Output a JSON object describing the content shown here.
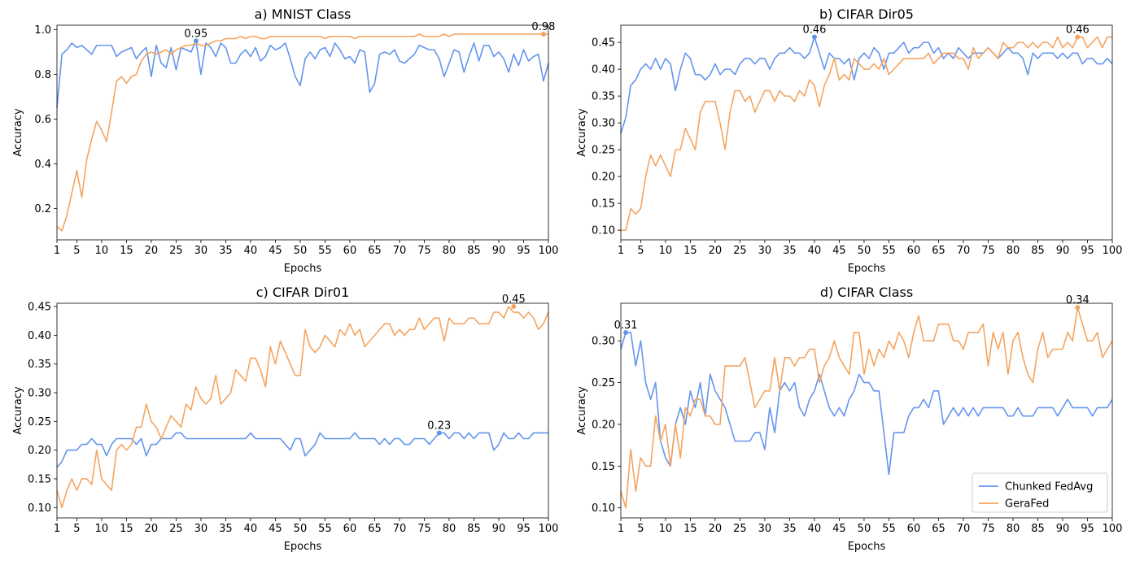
{
  "colors": {
    "chunked": "#6495ED",
    "gerafed": "#F4A460"
  },
  "legend": [
    {
      "label": "Chunked FedAvg",
      "color": "#6495ED"
    },
    {
      "label": "GeraFed",
      "color": "#F4A460"
    }
  ],
  "chart_data": [
    {
      "type": "line",
      "title": "a) MNIST Class",
      "xlabel": "Epochs",
      "ylabel": "Accuracy",
      "xlim": [
        1,
        100
      ],
      "ylim": [
        0.06,
        1.02
      ],
      "xticks": [
        1,
        5,
        10,
        15,
        20,
        25,
        30,
        35,
        40,
        45,
        50,
        55,
        60,
        65,
        70,
        75,
        80,
        85,
        90,
        95,
        100
      ],
      "yticks": [
        0.2,
        0.4,
        0.6,
        0.8,
        1.0
      ],
      "ytick_labels": [
        "0.2",
        "0.4",
        "0.6",
        "0.8",
        "1.0"
      ],
      "series": [
        {
          "name": "Chunked FedAvg",
          "values": [
            0.65,
            0.89,
            0.91,
            0.94,
            0.92,
            0.93,
            0.91,
            0.89,
            0.93,
            0.93,
            0.93,
            0.93,
            0.88,
            0.9,
            0.91,
            0.92,
            0.87,
            0.9,
            0.92,
            0.79,
            0.93,
            0.85,
            0.83,
            0.92,
            0.82,
            0.92,
            0.91,
            0.9,
            0.95,
            0.8,
            0.94,
            0.92,
            0.88,
            0.94,
            0.92,
            0.85,
            0.85,
            0.89,
            0.91,
            0.88,
            0.92,
            0.86,
            0.88,
            0.93,
            0.91,
            0.92,
            0.94,
            0.87,
            0.79,
            0.75,
            0.87,
            0.9,
            0.87,
            0.91,
            0.92,
            0.88,
            0.94,
            0.91,
            0.87,
            0.88,
            0.85,
            0.91,
            0.9,
            0.72,
            0.76,
            0.89,
            0.9,
            0.89,
            0.91,
            0.86,
            0.85,
            0.87,
            0.89,
            0.93,
            0.92,
            0.91,
            0.91,
            0.87,
            0.79,
            0.85,
            0.91,
            0.9,
            0.81,
            0.88,
            0.94,
            0.86,
            0.93,
            0.93,
            0.88,
            0.9,
            0.87,
            0.81,
            0.89,
            0.84,
            0.91,
            0.86,
            0.88,
            0.89,
            0.77,
            0.85
          ]
        },
        {
          "name": "GeraFed",
          "values": [
            0.12,
            0.1,
            0.17,
            0.27,
            0.37,
            0.25,
            0.42,
            0.51,
            0.59,
            0.55,
            0.5,
            0.63,
            0.77,
            0.79,
            0.76,
            0.79,
            0.8,
            0.86,
            0.89,
            0.9,
            0.89,
            0.9,
            0.91,
            0.89,
            0.91,
            0.92,
            0.93,
            0.93,
            0.94,
            0.93,
            0.93,
            0.94,
            0.95,
            0.95,
            0.96,
            0.96,
            0.96,
            0.97,
            0.96,
            0.97,
            0.97,
            0.96,
            0.96,
            0.97,
            0.97,
            0.97,
            0.97,
            0.97,
            0.97,
            0.97,
            0.97,
            0.97,
            0.97,
            0.97,
            0.96,
            0.97,
            0.97,
            0.97,
            0.97,
            0.97,
            0.96,
            0.97,
            0.97,
            0.97,
            0.97,
            0.97,
            0.97,
            0.97,
            0.97,
            0.97,
            0.97,
            0.97,
            0.97,
            0.98,
            0.97,
            0.97,
            0.97,
            0.97,
            0.98,
            0.97,
            0.98,
            0.98,
            0.98,
            0.98,
            0.98,
            0.98,
            0.98,
            0.98,
            0.98,
            0.98,
            0.98,
            0.98,
            0.98,
            0.98,
            0.98,
            0.98,
            0.98,
            0.98,
            0.98,
            0.98
          ]
        }
      ],
      "annotations": [
        {
          "series": 0,
          "x": 29,
          "y": 0.95,
          "label": "0.95"
        },
        {
          "series": 1,
          "x": 99,
          "y": 0.98,
          "label": "0.98"
        }
      ],
      "legend": false
    },
    {
      "type": "line",
      "title": "b) CIFAR Dir05",
      "xlabel": "Epochs",
      "ylabel": "Accuracy",
      "xlim": [
        1,
        100
      ],
      "ylim": [
        0.082,
        0.482
      ],
      "xticks": [
        1,
        5,
        10,
        15,
        20,
        25,
        30,
        35,
        40,
        45,
        50,
        55,
        60,
        65,
        70,
        75,
        80,
        85,
        90,
        95,
        100
      ],
      "yticks": [
        0.1,
        0.15,
        0.2,
        0.25,
        0.3,
        0.35,
        0.4,
        0.45
      ],
      "ytick_labels": [
        "0.10",
        "0.15",
        "0.20",
        "0.25",
        "0.30",
        "0.35",
        "0.40",
        "0.45"
      ],
      "series": [
        {
          "name": "Chunked FedAvg",
          "values": [
            0.28,
            0.31,
            0.37,
            0.38,
            0.4,
            0.41,
            0.4,
            0.42,
            0.4,
            0.42,
            0.41,
            0.36,
            0.4,
            0.43,
            0.42,
            0.39,
            0.39,
            0.38,
            0.39,
            0.41,
            0.39,
            0.4,
            0.4,
            0.39,
            0.41,
            0.42,
            0.42,
            0.41,
            0.42,
            0.42,
            0.4,
            0.42,
            0.43,
            0.43,
            0.44,
            0.43,
            0.43,
            0.42,
            0.43,
            0.46,
            0.43,
            0.4,
            0.43,
            0.42,
            0.42,
            0.41,
            0.42,
            0.38,
            0.42,
            0.43,
            0.42,
            0.44,
            0.43,
            0.4,
            0.43,
            0.43,
            0.44,
            0.45,
            0.43,
            0.44,
            0.44,
            0.45,
            0.45,
            0.43,
            0.44,
            0.42,
            0.43,
            0.42,
            0.44,
            0.43,
            0.42,
            0.43,
            0.43,
            0.43,
            0.44,
            0.43,
            0.42,
            0.43,
            0.44,
            0.43,
            0.43,
            0.42,
            0.39,
            0.43,
            0.42,
            0.43,
            0.43,
            0.43,
            0.42,
            0.43,
            0.42,
            0.43,
            0.43,
            0.41,
            0.42,
            0.42,
            0.41,
            0.41,
            0.42,
            0.41
          ]
        },
        {
          "name": "GeraFed",
          "values": [
            0.1,
            0.1,
            0.14,
            0.13,
            0.14,
            0.2,
            0.24,
            0.22,
            0.24,
            0.22,
            0.2,
            0.25,
            0.25,
            0.29,
            0.27,
            0.25,
            0.32,
            0.34,
            0.34,
            0.34,
            0.3,
            0.25,
            0.32,
            0.36,
            0.36,
            0.34,
            0.35,
            0.32,
            0.34,
            0.36,
            0.36,
            0.34,
            0.36,
            0.35,
            0.35,
            0.34,
            0.36,
            0.35,
            0.38,
            0.37,
            0.33,
            0.37,
            0.39,
            0.42,
            0.38,
            0.39,
            0.38,
            0.42,
            0.41,
            0.4,
            0.4,
            0.41,
            0.4,
            0.42,
            0.39,
            0.4,
            0.41,
            0.42,
            0.42,
            0.42,
            0.42,
            0.42,
            0.43,
            0.41,
            0.42,
            0.43,
            0.43,
            0.43,
            0.42,
            0.42,
            0.4,
            0.44,
            0.42,
            0.43,
            0.44,
            0.43,
            0.42,
            0.45,
            0.44,
            0.44,
            0.45,
            0.45,
            0.44,
            0.45,
            0.44,
            0.45,
            0.45,
            0.44,
            0.46,
            0.44,
            0.45,
            0.44,
            0.46,
            0.46,
            0.44,
            0.45,
            0.46,
            0.44,
            0.46,
            0.46
          ]
        }
      ],
      "annotations": [
        {
          "series": 0,
          "x": 40,
          "y": 0.46,
          "label": "0.46"
        },
        {
          "series": 1,
          "x": 93,
          "y": 0.46,
          "label": "0.46"
        }
      ],
      "legend": false
    },
    {
      "type": "line",
      "title": "c) CIFAR Dir01",
      "xlabel": "Epochs",
      "ylabel": "Accuracy",
      "xlim": [
        1,
        100
      ],
      "ylim": [
        0.082,
        0.4557
      ],
      "xticks": [
        1,
        5,
        10,
        15,
        20,
        25,
        30,
        35,
        40,
        45,
        50,
        55,
        60,
        65,
        70,
        75,
        80,
        85,
        90,
        95,
        100
      ],
      "yticks": [
        0.1,
        0.15,
        0.2,
        0.25,
        0.3,
        0.35,
        0.4,
        0.45
      ],
      "ytick_labels": [
        "0.10",
        "0.15",
        "0.20",
        "0.25",
        "0.30",
        "0.35",
        "0.40",
        "0.45"
      ],
      "series": [
        {
          "name": "Chunked FedAvg",
          "values": [
            0.17,
            0.18,
            0.2,
            0.2,
            0.2,
            0.21,
            0.21,
            0.22,
            0.21,
            0.21,
            0.19,
            0.21,
            0.22,
            0.22,
            0.22,
            0.22,
            0.21,
            0.22,
            0.19,
            0.21,
            0.21,
            0.22,
            0.22,
            0.22,
            0.23,
            0.23,
            0.22,
            0.22,
            0.22,
            0.22,
            0.22,
            0.22,
            0.22,
            0.22,
            0.22,
            0.22,
            0.22,
            0.22,
            0.22,
            0.23,
            0.22,
            0.22,
            0.22,
            0.22,
            0.22,
            0.22,
            0.21,
            0.2,
            0.22,
            0.22,
            0.19,
            0.2,
            0.21,
            0.23,
            0.22,
            0.22,
            0.22,
            0.22,
            0.22,
            0.22,
            0.23,
            0.22,
            0.22,
            0.22,
            0.22,
            0.21,
            0.22,
            0.21,
            0.22,
            0.22,
            0.21,
            0.21,
            0.22,
            0.22,
            0.22,
            0.21,
            0.22,
            0.23,
            0.23,
            0.22,
            0.23,
            0.23,
            0.22,
            0.23,
            0.22,
            0.23,
            0.23,
            0.23,
            0.2,
            0.21,
            0.23,
            0.22,
            0.22,
            0.23,
            0.22,
            0.22,
            0.23,
            0.23,
            0.23,
            0.23
          ]
        },
        {
          "name": "GeraFed",
          "values": [
            0.13,
            0.1,
            0.13,
            0.15,
            0.13,
            0.15,
            0.15,
            0.14,
            0.2,
            0.15,
            0.14,
            0.13,
            0.2,
            0.21,
            0.2,
            0.21,
            0.24,
            0.24,
            0.28,
            0.25,
            0.24,
            0.22,
            0.24,
            0.26,
            0.25,
            0.24,
            0.28,
            0.27,
            0.31,
            0.29,
            0.28,
            0.29,
            0.33,
            0.28,
            0.29,
            0.3,
            0.34,
            0.33,
            0.32,
            0.36,
            0.36,
            0.34,
            0.31,
            0.38,
            0.35,
            0.39,
            0.37,
            0.35,
            0.33,
            0.33,
            0.41,
            0.38,
            0.37,
            0.38,
            0.4,
            0.39,
            0.38,
            0.41,
            0.4,
            0.42,
            0.4,
            0.41,
            0.38,
            0.39,
            0.4,
            0.41,
            0.42,
            0.42,
            0.4,
            0.41,
            0.4,
            0.41,
            0.41,
            0.43,
            0.41,
            0.42,
            0.43,
            0.43,
            0.39,
            0.43,
            0.42,
            0.42,
            0.42,
            0.43,
            0.43,
            0.42,
            0.42,
            0.42,
            0.44,
            0.44,
            0.43,
            0.45,
            0.44,
            0.44,
            0.43,
            0.44,
            0.43,
            0.41,
            0.42,
            0.44
          ]
        }
      ],
      "annotations": [
        {
          "series": 0,
          "x": 78,
          "y": 0.23,
          "label": "0.23"
        },
        {
          "series": 1,
          "x": 93,
          "y": 0.45,
          "label": "0.45"
        }
      ],
      "legend": false
    },
    {
      "type": "line",
      "title": "d) CIFAR Class",
      "xlabel": "Epochs",
      "ylabel": "Accuracy",
      "xlim": [
        1,
        100
      ],
      "ylim": [
        0.088,
        0.345
      ],
      "xticks": [
        1,
        5,
        10,
        15,
        20,
        25,
        30,
        35,
        40,
        45,
        50,
        55,
        60,
        65,
        70,
        75,
        80,
        85,
        90,
        95,
        100
      ],
      "yticks": [
        0.1,
        0.15,
        0.2,
        0.25,
        0.3
      ],
      "ytick_labels": [
        "0.10",
        "0.15",
        "0.20",
        "0.25",
        "0.30"
      ],
      "series": [
        {
          "name": "Chunked FedAvg",
          "values": [
            0.29,
            0.31,
            0.31,
            0.27,
            0.3,
            0.25,
            0.23,
            0.25,
            0.18,
            0.16,
            0.15,
            0.2,
            0.22,
            0.2,
            0.24,
            0.22,
            0.25,
            0.21,
            0.26,
            0.24,
            0.23,
            0.22,
            0.2,
            0.18,
            0.18,
            0.18,
            0.18,
            0.19,
            0.19,
            0.17,
            0.22,
            0.19,
            0.24,
            0.25,
            0.24,
            0.25,
            0.22,
            0.21,
            0.23,
            0.24,
            0.26,
            0.24,
            0.22,
            0.21,
            0.22,
            0.21,
            0.23,
            0.24,
            0.26,
            0.25,
            0.25,
            0.24,
            0.24,
            0.19,
            0.14,
            0.19,
            0.19,
            0.19,
            0.21,
            0.22,
            0.22,
            0.23,
            0.22,
            0.24,
            0.24,
            0.2,
            0.21,
            0.22,
            0.21,
            0.22,
            0.21,
            0.22,
            0.21,
            0.22,
            0.22,
            0.22,
            0.22,
            0.22,
            0.21,
            0.21,
            0.22,
            0.21,
            0.21,
            0.21,
            0.22,
            0.22,
            0.22,
            0.22,
            0.21,
            0.22,
            0.23,
            0.22,
            0.22,
            0.22,
            0.22,
            0.21,
            0.22,
            0.22,
            0.22,
            0.23
          ]
        },
        {
          "name": "GeraFed",
          "values": [
            0.12,
            0.1,
            0.17,
            0.12,
            0.16,
            0.15,
            0.15,
            0.21,
            0.18,
            0.2,
            0.15,
            0.2,
            0.16,
            0.22,
            0.21,
            0.23,
            0.23,
            0.21,
            0.21,
            0.2,
            0.2,
            0.27,
            0.27,
            0.27,
            0.27,
            0.28,
            0.25,
            0.22,
            0.23,
            0.24,
            0.24,
            0.28,
            0.24,
            0.28,
            0.28,
            0.27,
            0.28,
            0.28,
            0.29,
            0.29,
            0.25,
            0.27,
            0.28,
            0.3,
            0.28,
            0.27,
            0.26,
            0.31,
            0.31,
            0.26,
            0.29,
            0.27,
            0.29,
            0.28,
            0.3,
            0.29,
            0.31,
            0.3,
            0.28,
            0.31,
            0.33,
            0.3,
            0.3,
            0.3,
            0.32,
            0.32,
            0.32,
            0.3,
            0.3,
            0.29,
            0.31,
            0.31,
            0.31,
            0.32,
            0.27,
            0.31,
            0.29,
            0.31,
            0.26,
            0.3,
            0.31,
            0.28,
            0.26,
            0.25,
            0.29,
            0.31,
            0.28,
            0.29,
            0.29,
            0.29,
            0.31,
            0.3,
            0.34,
            0.32,
            0.3,
            0.3,
            0.31,
            0.28,
            0.29,
            0.3
          ]
        }
      ],
      "annotations": [
        {
          "series": 0,
          "x": 2,
          "y": 0.31,
          "label": "0.31"
        },
        {
          "series": 1,
          "x": 93,
          "y": 0.34,
          "label": "0.34"
        }
      ],
      "legend": true,
      "legend_position": "lower-right"
    }
  ]
}
